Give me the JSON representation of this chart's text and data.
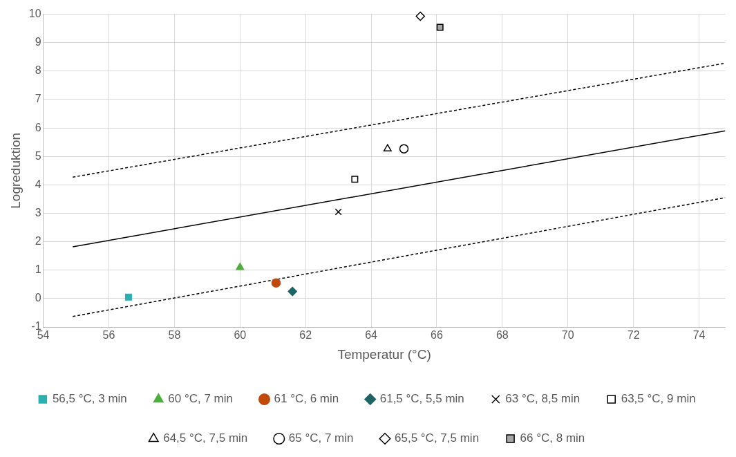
{
  "chart_data": {
    "type": "scatter",
    "xlabel": "Temperatur (°C)",
    "ylabel": "Logreduktion",
    "xlim": [
      54,
      74.8
    ],
    "xticks": [
      54,
      56,
      58,
      60,
      62,
      64,
      66,
      68,
      70,
      72,
      74
    ],
    "ylim": [
      -1,
      10
    ],
    "yticks": [
      -1,
      0,
      1,
      2,
      3,
      4,
      5,
      6,
      7,
      8,
      9,
      10
    ],
    "grid": true,
    "legend": "bottom",
    "series": [
      {
        "name": "56,5 °C, 3 min",
        "color": "#2ab0b0",
        "marker": "square",
        "x": [
          56.6
        ],
        "values": [
          0.05
        ]
      },
      {
        "name": "60 °C, 7 min",
        "color": "#4caf3c",
        "marker": "triangle",
        "x": [
          60.0
        ],
        "values": [
          1.1
        ]
      },
      {
        "name": "61 °C, 6 min",
        "color": "#c04a0a",
        "marker": "circle",
        "x": [
          61.1
        ],
        "values": [
          0.55
        ]
      },
      {
        "name": "61,5 °C, 5,5 min",
        "color": "#1e6464",
        "marker": "diamond",
        "x": [
          61.6
        ],
        "values": [
          0.25
        ]
      },
      {
        "name": "63 °C, 8,5 min",
        "color": "#000000",
        "marker": "cross",
        "x": [
          63.0
        ],
        "values": [
          3.05
        ]
      },
      {
        "name": "63,5 °C, 9 min",
        "color": "#ffffff",
        "marker": "square",
        "x": [
          63.5
        ],
        "values": [
          4.2
        ]
      },
      {
        "name": "64,5 °C, 7,5 min",
        "color": "#ffffff",
        "marker": "triangle",
        "x": [
          64.5
        ],
        "values": [
          5.27
        ]
      },
      {
        "name": "65 °C, 7 min",
        "color": "#ffffff",
        "marker": "circle",
        "x": [
          65.0
        ],
        "values": [
          5.27
        ]
      },
      {
        "name": "65,5 °C, 7,5 min",
        "color": "#ffffff",
        "marker": "diamond",
        "x": [
          65.5
        ],
        "values": [
          9.93
        ]
      },
      {
        "name": "66 °C, 8 min",
        "color": "#a6a6a6",
        "marker": "square",
        "x": [
          66.1
        ],
        "values": [
          9.54
        ]
      },
      {
        "type": "line",
        "color": "#000000",
        "line_style": "solid",
        "x": [
          54.9,
          74.8
        ],
        "values": [
          1.82,
          5.9
        ]
      },
      {
        "type": "line",
        "color": "#000000",
        "line_style": "dashed",
        "x": [
          54.9,
          74.8
        ],
        "values": [
          4.27,
          8.28
        ]
      },
      {
        "type": "line",
        "color": "#000000",
        "line_style": "dashed",
        "x": [
          54.9,
          74.8
        ],
        "values": [
          -0.63,
          3.55
        ]
      }
    ]
  }
}
